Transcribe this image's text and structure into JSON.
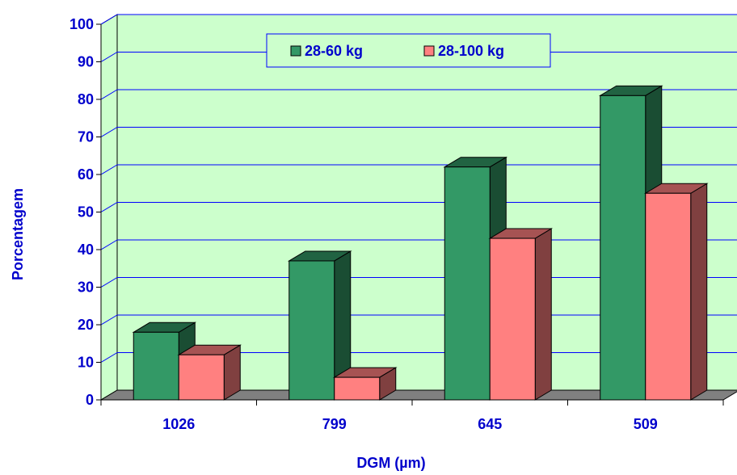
{
  "chart_data": {
    "type": "bar",
    "style": "3d-clustered-column",
    "categories": [
      "1026",
      "799",
      "645",
      "509"
    ],
    "series": [
      {
        "name": "28-60 kg",
        "values": [
          18,
          37,
          62,
          81
        ],
        "color": "#339966"
      },
      {
        "name": "28-100 kg",
        "values": [
          12,
          6,
          43,
          55
        ],
        "color": "#ff8080"
      }
    ],
    "xlabel": "DGM (µm)",
    "ylabel": "Porcentagem",
    "ylim": [
      0,
      100
    ],
    "yticks": [
      0,
      10,
      20,
      30,
      40,
      50,
      60,
      70,
      80,
      90,
      100
    ],
    "grid": true,
    "legend_position": "top-center",
    "colors": {
      "plot_background": "#ccffcc",
      "floor": "#808080",
      "gridline": "#0000ff",
      "text": "#0000cc"
    }
  }
}
